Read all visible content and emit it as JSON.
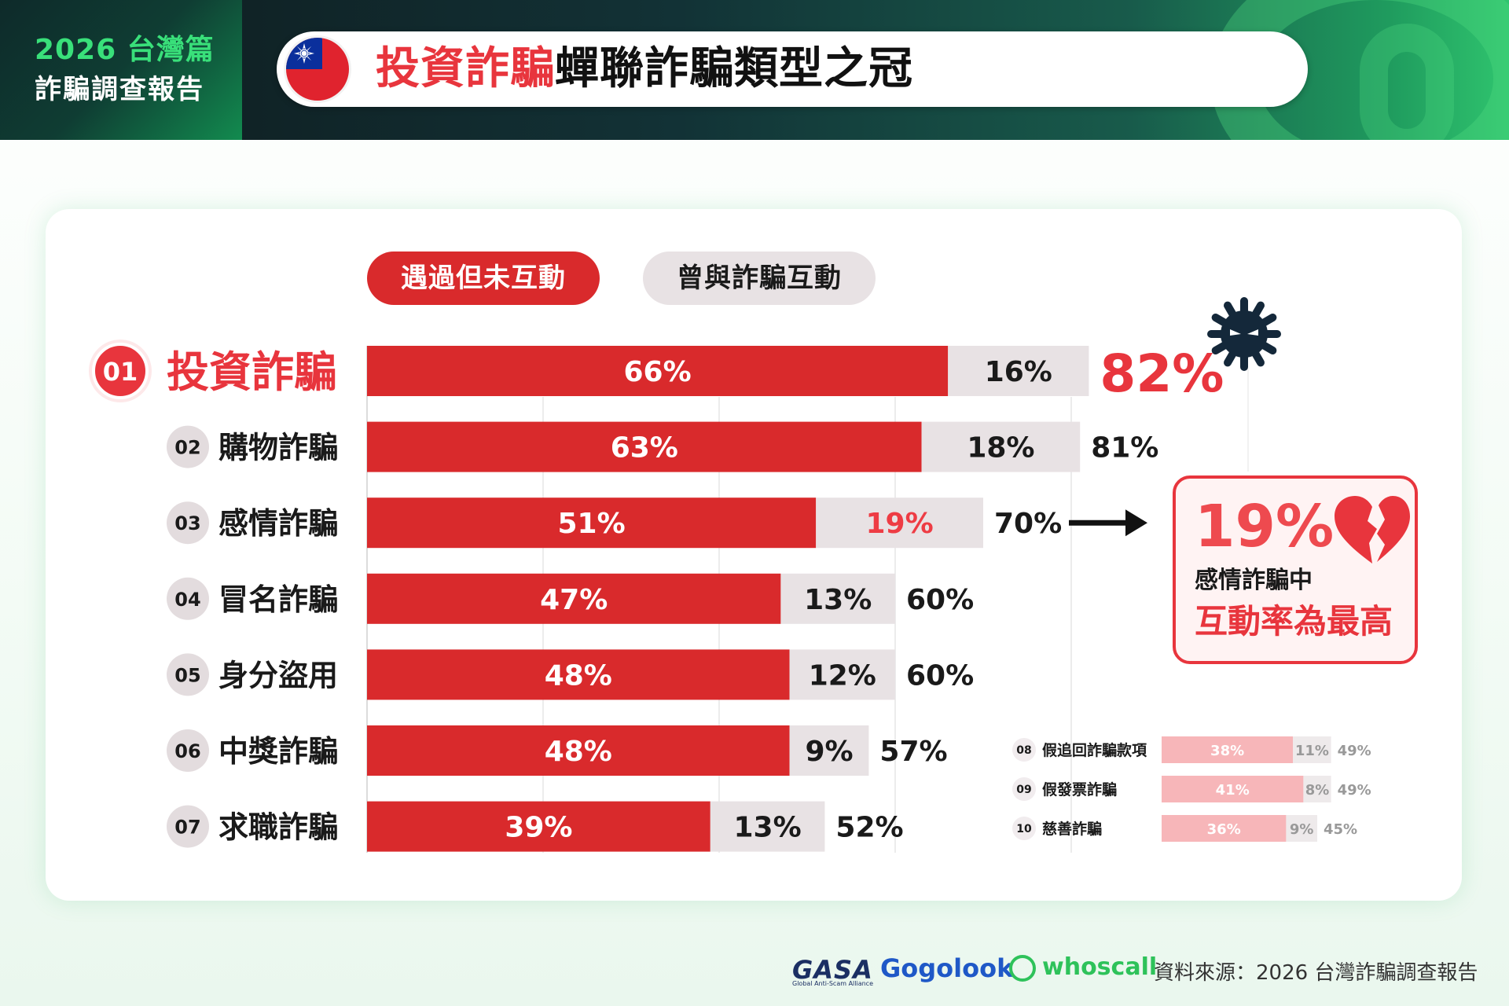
{
  "header": {
    "year_label": "2026 台灣篇",
    "report_label": "詐騙調查報告",
    "title_highlight": "投資詐騙",
    "title_rest": "蟬聯詐騙類型之冠"
  },
  "legend": {
    "not_interacted": "遇過但未互動",
    "interacted": "曾與詐騙互動"
  },
  "colors": {
    "red": "#d92a2c",
    "grey": "#e8e2e4",
    "light_red": "#f7b6b9",
    "accent": "#e8353d",
    "dark_navy": "#14283a"
  },
  "chart_data": {
    "type": "bar",
    "stacked": true,
    "orientation": "horizontal",
    "series": [
      {
        "name": "遇過但未互動"
      },
      {
        "name": "曾與詐騙互動"
      }
    ],
    "main": [
      {
        "rank": "01",
        "category": "投資詐騙",
        "not_interacted": 66,
        "interacted": 16,
        "total": 82,
        "not_interacted_label": "66%",
        "interacted_label": "16%",
        "total_label": "82%"
      },
      {
        "rank": "02",
        "category": "購物詐騙",
        "not_interacted": 63,
        "interacted": 18,
        "total": 81,
        "not_interacted_label": "63%",
        "interacted_label": "18%",
        "total_label": "81%"
      },
      {
        "rank": "03",
        "category": "感情詐騙",
        "not_interacted": 51,
        "interacted": 19,
        "total": 70,
        "not_interacted_label": "51%",
        "interacted_label": "19%",
        "total_label": "70%"
      },
      {
        "rank": "04",
        "category": "冒名詐騙",
        "not_interacted": 47,
        "interacted": 13,
        "total": 60,
        "not_interacted_label": "47%",
        "interacted_label": "13%",
        "total_label": "60%"
      },
      {
        "rank": "05",
        "category": "身分盜用",
        "not_interacted": 48,
        "interacted": 12,
        "total": 60,
        "not_interacted_label": "48%",
        "interacted_label": "12%",
        "total_label": "60%"
      },
      {
        "rank": "06",
        "category": "中獎詐騙",
        "not_interacted": 48,
        "interacted": 9,
        "total": 57,
        "not_interacted_label": "48%",
        "interacted_label": "9%",
        "total_label": "57%"
      },
      {
        "rank": "07",
        "category": "求職詐騙",
        "not_interacted": 39,
        "interacted": 13,
        "total": 52,
        "not_interacted_label": "39%",
        "interacted_label": "13%",
        "total_label": "52%"
      }
    ],
    "minor": [
      {
        "rank": "08",
        "category": "假追回詐騙款項",
        "not_interacted": 38,
        "interacted": 11,
        "total": 49,
        "not_interacted_label": "38%",
        "interacted_label": "11%",
        "total_label": "49%"
      },
      {
        "rank": "09",
        "category": "假發票詐騙",
        "not_interacted": 41,
        "interacted": 8,
        "total": 49,
        "not_interacted_label": "41%",
        "interacted_label": "8%",
        "total_label": "49%"
      },
      {
        "rank": "10",
        "category": "慈善詐騙",
        "not_interacted": 36,
        "interacted": 9,
        "total": 45,
        "not_interacted_label": "36%",
        "interacted_label": "9%",
        "total_label": "45%"
      }
    ],
    "xlim": [
      0,
      100
    ],
    "grid": true,
    "legend_position": "top"
  },
  "callout": {
    "value": "19%",
    "line1": "感情詐騙中",
    "line2": "互動率為最高"
  },
  "footer": {
    "logo_gasa": "GASA",
    "logo_gasa_sub": "Global Anti-Scam Alliance",
    "logo_gogolook": "Gogolook",
    "logo_whoscall": "whoscall",
    "source": "資料來源：2026 台灣詐騙調查報告"
  }
}
